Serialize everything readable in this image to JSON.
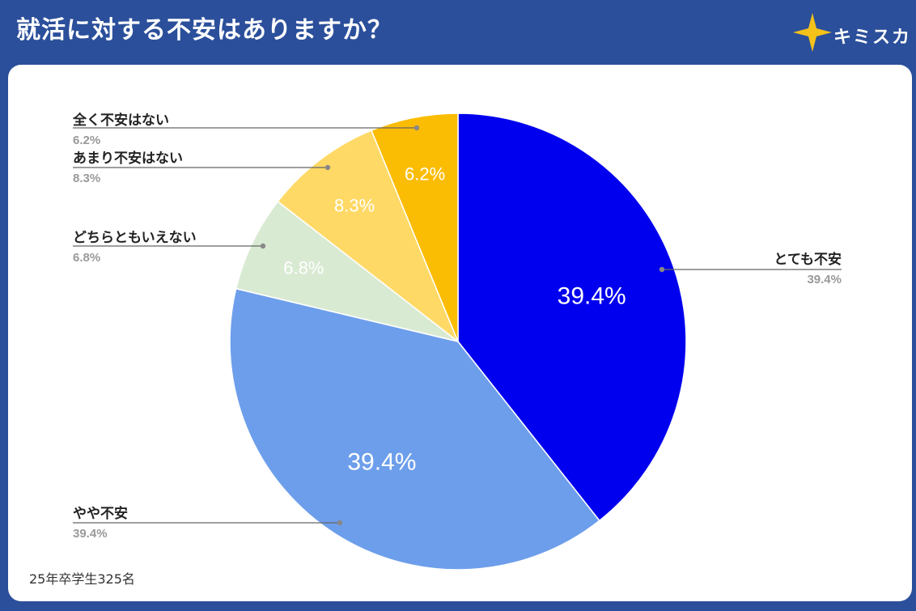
{
  "header": {
    "title": "就活に対する不安はありますか？",
    "brand_name": "キミスカ",
    "brand_star_color": "#f5c21a"
  },
  "footnote": "25年卒学生325名",
  "colors": {
    "background": "#2b4f9a",
    "card": "#ffffff",
    "leader_line": "#666666",
    "label_text": "#222222",
    "sublabel_text": "#999999"
  },
  "chart_data": {
    "type": "pie",
    "title": "就活に対する不安はありますか？",
    "start_angle_deg": 0,
    "direction": "clockwise",
    "slices": [
      {
        "label": "とても不安",
        "value": 39.4,
        "display": "39.4%",
        "color": "#0000ee",
        "label_side": "right"
      },
      {
        "label": "やや不安",
        "value": 39.4,
        "display": "39.4%",
        "color": "#6d9eeb",
        "label_side": "left"
      },
      {
        "label": "どちらともいえない",
        "value": 6.8,
        "display": "6.8%",
        "color": "#d9ead3",
        "label_side": "left"
      },
      {
        "label": "あまり不安はない",
        "value": 8.3,
        "display": "8.3%",
        "color": "#ffd966",
        "label_side": "left"
      },
      {
        "label": "全く不安はない",
        "value": 6.2,
        "display": "6.2%",
        "color": "#fbbc04",
        "label_side": "left"
      }
    ]
  }
}
